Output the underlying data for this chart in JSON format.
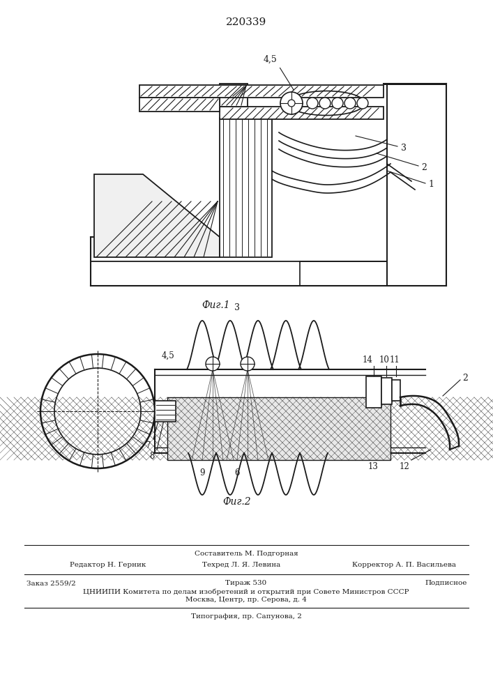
{
  "patent_number": "220339",
  "fig1_caption": "Фиг.1",
  "fig2_caption": "Фиг.2",
  "footer_sestavitel": "Составитель М. Подгорная",
  "footer_redaktor": "Редактор Н. Герник",
  "footer_tehred": "Техред Л. Я. Левина",
  "footer_korrektor": "Корректор А. П. Васильева",
  "footer_zakaz": "Заказ 2559/2",
  "footer_tirazh": "Тираж 530",
  "footer_podpisnoe": "Подписное",
  "footer_cniipи": "ЦНИИПИ Комитета по делам изобретений и открытий при Совете Министров СССР",
  "footer_moskva": "Москва, Центр, пр. Серова, д. 4",
  "footer_tipografia": "Типография, пр. Сапунова, 2",
  "bg_color": "#ffffff",
  "line_color": "#1a1a1a"
}
